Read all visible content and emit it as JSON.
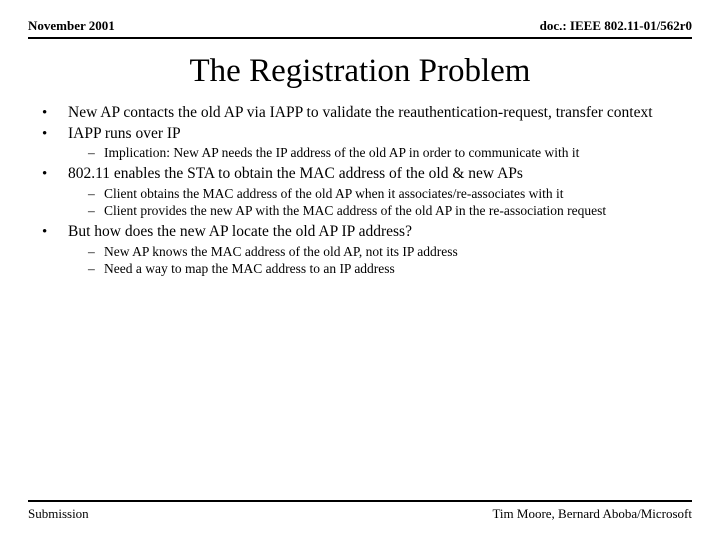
{
  "header": {
    "left": "November 2001",
    "right": "doc.: IEEE 802.11-01/562r0"
  },
  "title": "The Registration Problem",
  "bullets": [
    {
      "text": "New AP contacts the old AP via IAPP to validate the reauthentication-request, transfer context",
      "sub": []
    },
    {
      "text": "IAPP runs over IP",
      "sub": [
        "Implication: New AP needs the IP address of the old AP in order to communicate with it"
      ]
    },
    {
      "text": "802.11 enables the STA to obtain the MAC address of the old & new APs",
      "sub": [
        "Client obtains the MAC address of the old AP when it associates/re-associates with it",
        "Client provides the new AP with  the MAC address of the old AP in the re-association request"
      ]
    },
    {
      "text": "But how does the new AP locate the old AP IP address?",
      "sub": [
        "New AP knows the MAC address of the old AP, not its IP address",
        "Need a way to map the MAC address to an IP address"
      ]
    }
  ],
  "footer": {
    "left": "Submission",
    "right": "Tim Moore, Bernard Aboba/Microsoft"
  }
}
